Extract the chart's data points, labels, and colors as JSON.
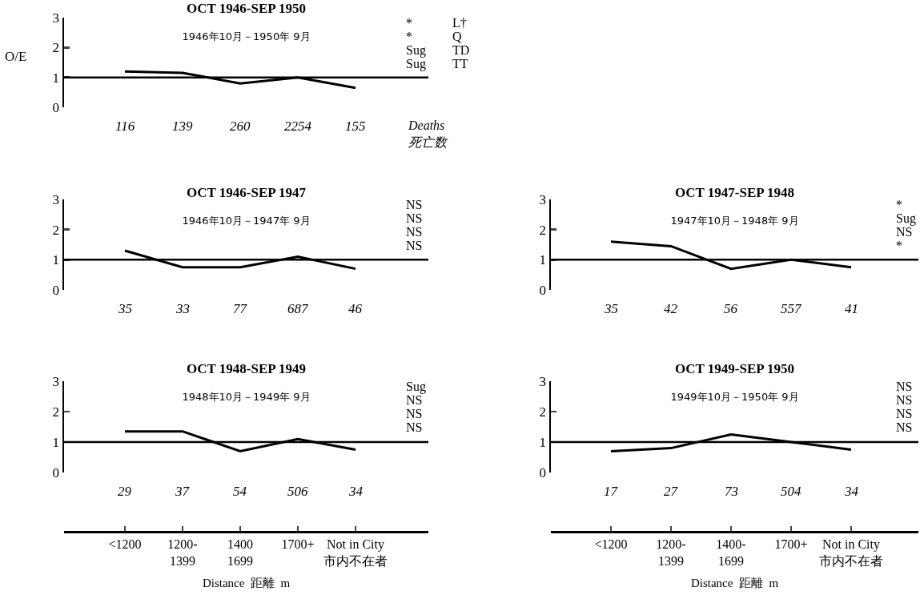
{
  "chart_data": [
    {
      "type": "line",
      "title": "OCT 1946-SEP 1950",
      "subtitle": "1946年10月－1950年 9月",
      "ylabel": "O/E",
      "categories": [
        null,
        null,
        null,
        null,
        null
      ],
      "series": [
        {
          "color": "#000000",
          "values": [
            1.2,
            1.15,
            0.8,
            1.0,
            0.65
          ]
        }
      ],
      "ylim": [
        0,
        3
      ],
      "yticks": [
        0,
        1,
        2,
        3
      ],
      "grid": false,
      "marker": "none",
      "line_style": "solid",
      "tick_labels": "y",
      "ref_lines": [
        {
          "axis": "y",
          "value": 1,
          "color": "#000000"
        }
      ],
      "annotations": [
        "116",
        "139",
        "260",
        "2254",
        "155",
        "Deaths\n死亡数",
        "*",
        "*",
        "Sug",
        "Sug",
        "L†",
        "Q",
        "TD",
        "TT"
      ]
    },
    {
      "type": "line",
      "title": "OCT 1946-SEP 1947",
      "subtitle": "1946年10月－1947年 9月",
      "categories": [
        null,
        null,
        null,
        null,
        null
      ],
      "series": [
        {
          "color": "#000000",
          "values": [
            1.3,
            0.75,
            0.75,
            1.1,
            0.7
          ]
        }
      ],
      "ylim": [
        0,
        3
      ],
      "yticks": [
        0,
        1,
        2,
        3
      ],
      "grid": false,
      "marker": "none",
      "line_style": "solid",
      "tick_labels": "y",
      "ref_lines": [
        {
          "axis": "y",
          "value": 1,
          "color": "#000000"
        }
      ],
      "annotations": [
        "35",
        "33",
        "77",
        "687",
        "46",
        "NS",
        "NS",
        "NS",
        "NS"
      ]
    },
    {
      "type": "line",
      "title": "OCT 1947-SEP 1948",
      "subtitle": "1947年10月－1948年 9月",
      "categories": [
        null,
        null,
        null,
        null,
        null
      ],
      "series": [
        {
          "color": "#000000",
          "values": [
            1.6,
            1.45,
            0.7,
            1.0,
            0.75
          ]
        }
      ],
      "ylim": [
        0,
        3
      ],
      "yticks": [
        0,
        1,
        2,
        3
      ],
      "grid": false,
      "marker": "none",
      "line_style": "solid",
      "tick_labels": "y",
      "ref_lines": [
        {
          "axis": "y",
          "value": 1,
          "color": "#000000"
        }
      ],
      "annotations": [
        "35",
        "42",
        "56",
        "557",
        "41",
        "*",
        "Sug",
        "NS",
        "*"
      ]
    },
    {
      "type": "line",
      "title": "OCT 1948-SEP 1949",
      "subtitle": "1948年10月－1949年 9月",
      "xlabel": "Distance  距離  m",
      "categories": [
        "<1200",
        "1200-\n1399",
        "1400\n1699",
        "1700+",
        "Not in City\n市内不在者"
      ],
      "series": [
        {
          "color": "#000000",
          "values": [
            1.35,
            1.35,
            0.7,
            1.1,
            0.75
          ]
        }
      ],
      "ylim": [
        0,
        3
      ],
      "yticks": [
        0,
        1,
        2,
        3
      ],
      "grid": false,
      "marker": "none",
      "line_style": "solid",
      "ref_lines": [
        {
          "axis": "y",
          "value": 1,
          "color": "#000000"
        }
      ],
      "annotations": [
        "29",
        "37",
        "54",
        "506",
        "34",
        "Sug",
        "NS",
        "NS",
        "NS"
      ]
    },
    {
      "type": "line",
      "title": "OCT 1949-SEP 1950",
      "subtitle": "1949年10月－1950年 9月",
      "xlabel": "Distance  距離  m",
      "categories": [
        "<1200",
        "1200-\n1399",
        "1400-\n1699",
        "1700+",
        "Not in City\n市内不在者"
      ],
      "series": [
        {
          "color": "#000000",
          "values": [
            0.7,
            0.8,
            1.25,
            1.0,
            0.75
          ]
        }
      ],
      "ylim": [
        0,
        3
      ],
      "yticks": [
        0,
        1,
        2,
        3
      ],
      "grid": false,
      "marker": "none",
      "line_style": "solid",
      "ref_lines": [
        {
          "axis": "y",
          "value": 1,
          "color": "#000000"
        }
      ],
      "annotations": [
        "17",
        "27",
        "73",
        "504",
        "34",
        "NS",
        "NS",
        "NS",
        "NS"
      ]
    }
  ]
}
